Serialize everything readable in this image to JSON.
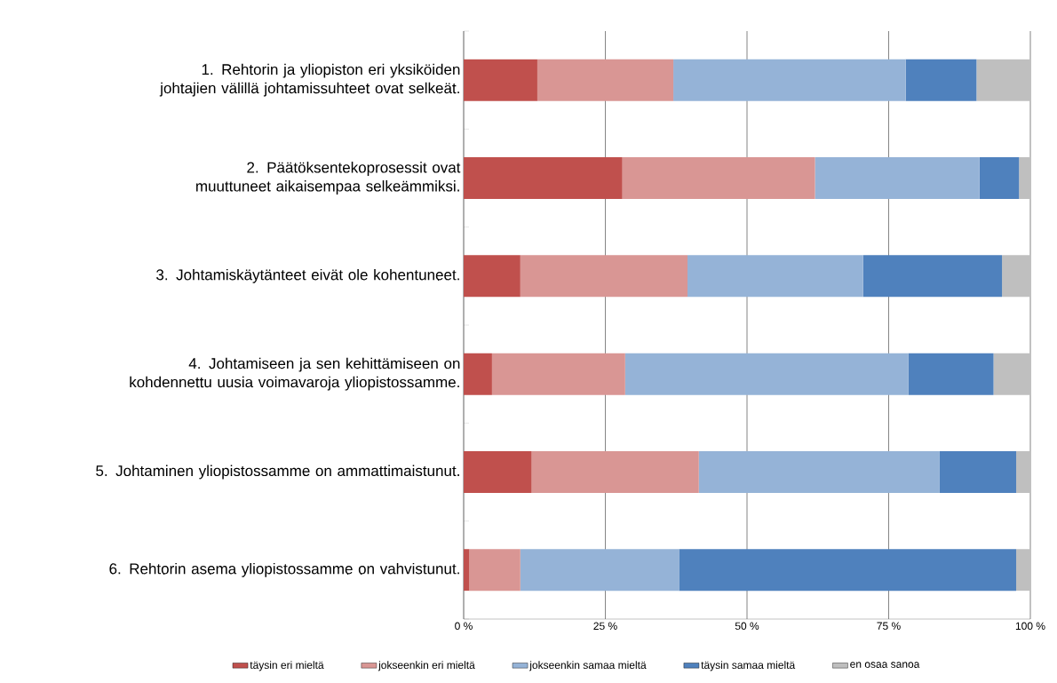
{
  "chart_data": {
    "type": "bar",
    "orientation": "horizontal",
    "stacked": true,
    "categories": [
      "1. Rehtorin ja yliopiston eri yksiköiden johtajien välillä johtamissuhteet ovat selkeät.",
      "2. Päätöksentekoprosessit ovat muuttuneet aikaisempaa selkeämmiksi.",
      "3. Johtamiskäytänteet eivät ole kohentuneet.",
      "4. Johtamiseen ja sen kehittämiseen on kohdennettu uusia voimavaroja yliopistossamme.",
      "5. Johtaminen yliopistossamme on ammattimaistunut.",
      "6. Rehtorin asema yliopistossamme on vahvistunut."
    ],
    "series": [
      {
        "name": "täysin eri mieltä",
        "color": "#c0504d",
        "values": [
          13,
          28,
          10,
          5,
          12,
          1
        ]
      },
      {
        "name": "jokseenkin eri mieltä",
        "color": "#d99694",
        "values": [
          24,
          34,
          29.5,
          23.5,
          29.5,
          9
        ]
      },
      {
        "name": "jokseenkin samaa mieltä",
        "color": "#95b3d7",
        "values": [
          41,
          29,
          31,
          50,
          42.5,
          28
        ]
      },
      {
        "name": "täysin samaa mieltä",
        "color": "#4f81bd",
        "values": [
          12.5,
          7,
          24.5,
          15,
          13.5,
          59.5
        ]
      },
      {
        "name": "en osaa sanoa",
        "color": "#bfbfbf",
        "values": [
          9.5,
          2,
          5,
          6.5,
          2.5,
          2.5
        ]
      }
    ],
    "xlim": [
      0,
      100
    ],
    "xticks": [
      {
        "value": 0,
        "label": "0 %"
      },
      {
        "value": 25,
        "label": "25 %"
      },
      {
        "value": 50,
        "label": "50 %"
      },
      {
        "value": 75,
        "label": "75 %"
      },
      {
        "value": 100,
        "label": "100 %"
      }
    ],
    "grid": "x",
    "legend": "bottom"
  }
}
